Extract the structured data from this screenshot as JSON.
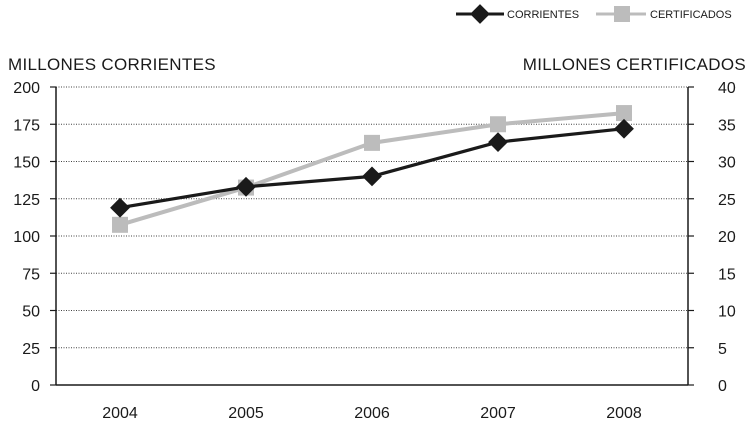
{
  "chart_data": {
    "type": "line",
    "categories": [
      "2004",
      "2005",
      "2006",
      "2007",
      "2008"
    ],
    "series": [
      {
        "name": "CORRIENTES",
        "axis": "left",
        "marker": "diamond",
        "color": "#1a1a1a",
        "values": [
          119,
          133,
          140,
          163,
          172
        ]
      },
      {
        "name": "CERTIFICADOS",
        "axis": "right",
        "marker": "square",
        "color": "#bcbcbc",
        "values": [
          21.5,
          26.5,
          32.5,
          35.0,
          36.5
        ]
      }
    ],
    "ylabel_left": "MILLONES CORRIENTES",
    "ylabel_right": "MILLONES CERTIFICADOS",
    "ylim_left": [
      0,
      200
    ],
    "yticks_left": [
      "0",
      "25",
      "50",
      "75",
      "100",
      "125",
      "150",
      "175",
      "200"
    ],
    "ylim_right": [
      0,
      40
    ],
    "yticks_right": [
      "0",
      "5",
      "10",
      "15",
      "20",
      "25",
      "30",
      "35",
      "40"
    ],
    "grid": "horizontal dotted",
    "legend_position": "top-right"
  }
}
